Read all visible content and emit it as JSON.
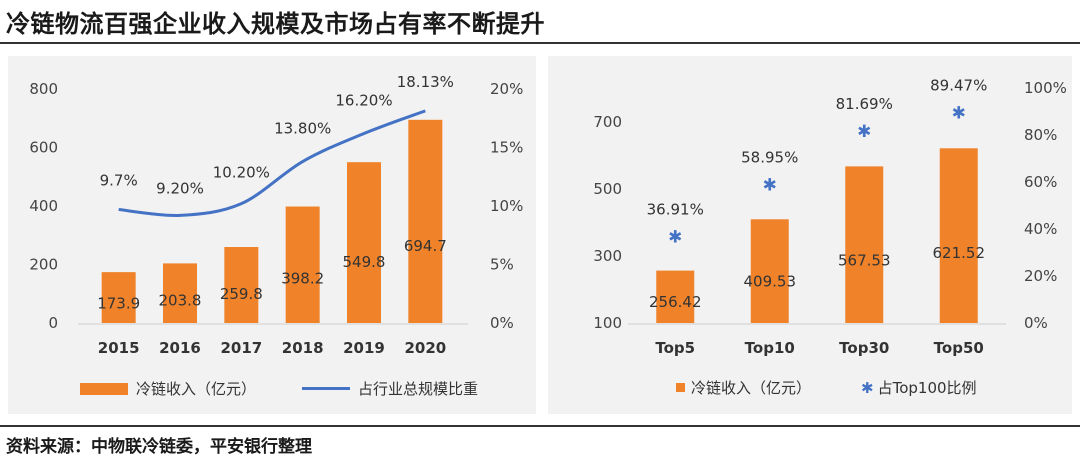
{
  "title": "冷链物流百强企业收入规模及市场占有率不断提升",
  "source": "资料来源：中物联冷链委，平安银行整理",
  "colors": {
    "bar": "#f0832a",
    "line": "#4472c4",
    "marker": "#4472c4"
  },
  "chart_data": [
    {
      "type": "bar",
      "categories": [
        "2015",
        "2016",
        "2017",
        "2018",
        "2019",
        "2020"
      ],
      "series": [
        {
          "name": "冷链收入（亿元）",
          "type": "bar",
          "axis": "left",
          "values": [
            173.9,
            203.8,
            259.8,
            398.2,
            549.8,
            694.7
          ]
        },
        {
          "name": "占行业总规模比重",
          "type": "line",
          "axis": "right",
          "values": [
            9.7,
            9.2,
            10.2,
            13.8,
            16.2,
            18.13
          ],
          "labels": [
            "9.7%",
            "9.20%",
            "10.20%",
            "13.80%",
            "16.20%",
            "18.13%"
          ]
        }
      ],
      "ylim": [
        0,
        800
      ],
      "yticks": [
        "0",
        "200",
        "400",
        "600",
        "800"
      ],
      "y2lim": [
        0,
        20
      ],
      "y2ticks": [
        "0%",
        "5%",
        "10%",
        "15%",
        "20%"
      ],
      "legend": "bottom",
      "grid": false
    },
    {
      "type": "bar",
      "categories": [
        "Top5",
        "Top10",
        "Top30",
        "Top50"
      ],
      "series": [
        {
          "name": "冷链收入（亿元）",
          "type": "bar",
          "axis": "left",
          "values": [
            256.42,
            409.53,
            567.53,
            621.52
          ]
        },
        {
          "name": "占Top100比例",
          "type": "scatter",
          "axis": "right",
          "values": [
            36.91,
            58.95,
            81.69,
            89.47
          ],
          "labels": [
            "36.91%",
            "58.95%",
            "81.69%",
            "89.47%"
          ]
        }
      ],
      "ylim": [
        100,
        800
      ],
      "yticks": [
        "100",
        "300",
        "500",
        "700"
      ],
      "y2lim": [
        0,
        100
      ],
      "y2ticks": [
        "0%",
        "20%",
        "40%",
        "60%",
        "80%",
        "100%"
      ],
      "legend": "bottom",
      "grid": false
    }
  ]
}
